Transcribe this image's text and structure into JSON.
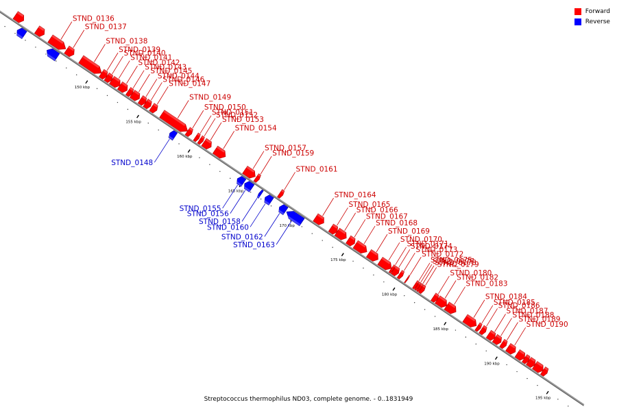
{
  "caption": "Streptococcus thermophilus ND03, complete genome. - 0..1831949",
  "legend": [
    {
      "label": "Forward",
      "color": "#ff0000"
    },
    {
      "label": "Reverse",
      "color": "#0000ff"
    }
  ],
  "colors": {
    "forward": "#ff0000",
    "reverse": "#0000ff",
    "backbone": "#999999",
    "forward_label": "#cc0000",
    "reverse_label": "#0000cc"
  },
  "ticks": [
    {
      "kbp": 150,
      "label": "150 kbp"
    },
    {
      "kbp": 155,
      "label": "155 kbp"
    },
    {
      "kbp": 160,
      "label": "160 kbp"
    },
    {
      "kbp": 165,
      "label": "165 kbp"
    },
    {
      "kbp": 170,
      "label": "170 kbp"
    },
    {
      "kbp": 175,
      "label": "175 kbp"
    },
    {
      "kbp": 180,
      "label": "180 kbp"
    },
    {
      "kbp": 185,
      "label": "185 kbp"
    },
    {
      "kbp": 190,
      "label": "190 kbp"
    },
    {
      "kbp": 195,
      "label": "195 kbp"
    }
  ],
  "genes": [
    {
      "name": "",
      "strand": "forward",
      "start_kbp": 142.2,
      "end_kbp": 143.0
    },
    {
      "name": "",
      "strand": "reverse",
      "start_kbp": 143.0,
      "end_kbp": 143.7
    },
    {
      "name": "",
      "strand": "forward",
      "start_kbp": 144.3,
      "end_kbp": 145.0
    },
    {
      "name": "STND_0136",
      "strand": "forward",
      "start_kbp": 145.6,
      "end_kbp": 147.1
    },
    {
      "name": "",
      "strand": "reverse",
      "start_kbp": 145.9,
      "end_kbp": 146.9
    },
    {
      "name": "STND_0137",
      "strand": "forward",
      "start_kbp": 147.2,
      "end_kbp": 147.9
    },
    {
      "name": "STND_0138",
      "strand": "forward",
      "start_kbp": 148.6,
      "end_kbp": 150.6
    },
    {
      "name": "STND_0139",
      "strand": "forward",
      "start_kbp": 150.6,
      "end_kbp": 151.1
    },
    {
      "name": "STND_0140",
      "strand": "forward",
      "start_kbp": 151.1,
      "end_kbp": 151.6
    },
    {
      "name": "STND_0141",
      "strand": "forward",
      "start_kbp": 151.6,
      "end_kbp": 152.4
    },
    {
      "name": "STND_0142",
      "strand": "forward",
      "start_kbp": 152.4,
      "end_kbp": 153.1
    },
    {
      "name": "STND_0143",
      "strand": "forward",
      "start_kbp": 153.2,
      "end_kbp": 153.6
    },
    {
      "name": "STND_0145",
      "strand": "forward",
      "start_kbp": 153.6,
      "end_kbp": 154.3
    },
    {
      "name": "STND_0144",
      "strand": "forward",
      "start_kbp": 154.4,
      "end_kbp": 154.9
    },
    {
      "name": "STND_0146",
      "strand": "forward",
      "start_kbp": 154.9,
      "end_kbp": 155.4
    },
    {
      "name": "STND_0147",
      "strand": "forward",
      "start_kbp": 155.5,
      "end_kbp": 156.0
    },
    {
      "name": "STND_0149",
      "strand": "forward",
      "start_kbp": 156.5,
      "end_kbp": 159.0
    },
    {
      "name": "STND_0148",
      "strand": "reverse",
      "start_kbp": 157.9,
      "end_kbp": 158.4
    },
    {
      "name": "STND_0150",
      "strand": "forward",
      "start_kbp": 159.0,
      "end_kbp": 159.4
    },
    {
      "name": "STND_0151",
      "strand": "forward",
      "start_kbp": 159.8,
      "end_kbp": 160.1
    },
    {
      "name": "STND_0152",
      "strand": "forward",
      "start_kbp": 160.2,
      "end_kbp": 160.5
    },
    {
      "name": "STND_0153",
      "strand": "forward",
      "start_kbp": 160.6,
      "end_kbp": 161.3
    },
    {
      "name": "STND_0154",
      "strand": "forward",
      "start_kbp": 161.7,
      "end_kbp": 162.7
    },
    {
      "name": "STND_0155",
      "strand": "reverse",
      "start_kbp": 164.5,
      "end_kbp": 165.1
    },
    {
      "name": "STND_0157",
      "strand": "forward",
      "start_kbp": 164.6,
      "end_kbp": 165.6
    },
    {
      "name": "STND_0156",
      "strand": "reverse",
      "start_kbp": 165.2,
      "end_kbp": 165.9
    },
    {
      "name": "STND_0159",
      "strand": "forward",
      "start_kbp": 165.7,
      "end_kbp": 166.0
    },
    {
      "name": "STND_0158",
      "strand": "reverse",
      "start_kbp": 166.6,
      "end_kbp": 166.8
    },
    {
      "name": "STND_0160",
      "strand": "reverse",
      "start_kbp": 167.2,
      "end_kbp": 167.8
    },
    {
      "name": "STND_0161",
      "strand": "forward",
      "start_kbp": 168.0,
      "end_kbp": 168.3
    },
    {
      "name": "STND_0162",
      "strand": "reverse",
      "start_kbp": 168.6,
      "end_kbp": 169.2
    },
    {
      "name": "STND_0163",
      "strand": "reverse",
      "start_kbp": 169.3,
      "end_kbp": 170.8
    },
    {
      "name": "STND_0164",
      "strand": "forward",
      "start_kbp": 171.5,
      "end_kbp": 172.3
    },
    {
      "name": "STND_0165",
      "strand": "forward",
      "start_kbp": 173.0,
      "end_kbp": 173.6
    },
    {
      "name": "STND_0166",
      "strand": "forward",
      "start_kbp": 173.6,
      "end_kbp": 174.5
    },
    {
      "name": "STND_0167",
      "strand": "forward",
      "start_kbp": 174.7,
      "end_kbp": 175.3
    },
    {
      "name": "STND_0168",
      "strand": "forward",
      "start_kbp": 175.4,
      "end_kbp": 176.5
    },
    {
      "name": "STND_0169",
      "strand": "forward",
      "start_kbp": 176.7,
      "end_kbp": 177.6
    },
    {
      "name": "STND_0170",
      "strand": "forward",
      "start_kbp": 177.8,
      "end_kbp": 178.9
    },
    {
      "name": "STND_0171",
      "strand": "forward",
      "start_kbp": 178.9,
      "end_kbp": 179.1
    },
    {
      "name": "STND_0174",
      "strand": "forward",
      "start_kbp": 179.1,
      "end_kbp": 179.6
    },
    {
      "name": "STND_0173",
      "strand": "forward",
      "start_kbp": 179.7,
      "end_kbp": 180.0
    },
    {
      "name": "STND_0172",
      "strand": "forward",
      "start_kbp": 180.4,
      "end_kbp": 180.5
    },
    {
      "name": "STND_0175",
      "strand": "forward",
      "start_kbp": 181.2,
      "end_kbp": 181.4
    },
    {
      "name": "STND_0177",
      "strand": "forward",
      "start_kbp": 181.4,
      "end_kbp": 181.6
    },
    {
      "name": "STND_0178",
      "strand": "forward",
      "start_kbp": 181.6,
      "end_kbp": 181.8
    },
    {
      "name": "STND_0179",
      "strand": "forward",
      "start_kbp": 181.8,
      "end_kbp": 182.1
    },
    {
      "name": "STND_0180",
      "strand": "forward",
      "start_kbp": 183.0,
      "end_kbp": 183.4
    },
    {
      "name": "STND_0182",
      "strand": "forward",
      "start_kbp": 183.4,
      "end_kbp": 184.3
    },
    {
      "name": "STND_0183",
      "strand": "forward",
      "start_kbp": 184.3,
      "end_kbp": 185.2
    },
    {
      "name": "STND_0184",
      "strand": "forward",
      "start_kbp": 186.1,
      "end_kbp": 187.2
    },
    {
      "name": "STND_0185",
      "strand": "forward",
      "start_kbp": 187.3,
      "end_kbp": 187.6
    },
    {
      "name": "STND_0186",
      "strand": "forward",
      "start_kbp": 187.7,
      "end_kbp": 188.1
    },
    {
      "name": "STND_0187",
      "strand": "forward",
      "start_kbp": 188.4,
      "end_kbp": 189.0
    },
    {
      "name": "STND_0188",
      "strand": "forward",
      "start_kbp": 189.0,
      "end_kbp": 189.6
    },
    {
      "name": "STND_0189",
      "strand": "forward",
      "start_kbp": 189.7,
      "end_kbp": 190.1
    },
    {
      "name": "STND_0190",
      "strand": "forward",
      "start_kbp": 190.3,
      "end_kbp": 191.0
    },
    {
      "name": "",
      "strand": "forward",
      "start_kbp": 191.2,
      "end_kbp": 191.9
    },
    {
      "name": "",
      "strand": "forward",
      "start_kbp": 191.9,
      "end_kbp": 192.3
    },
    {
      "name": "",
      "strand": "forward",
      "start_kbp": 192.3,
      "end_kbp": 192.9
    },
    {
      "name": "",
      "strand": "forward",
      "start_kbp": 192.9,
      "end_kbp": 193.7
    },
    {
      "name": "",
      "strand": "forward",
      "start_kbp": 193.7,
      "end_kbp": 194.1
    }
  ]
}
